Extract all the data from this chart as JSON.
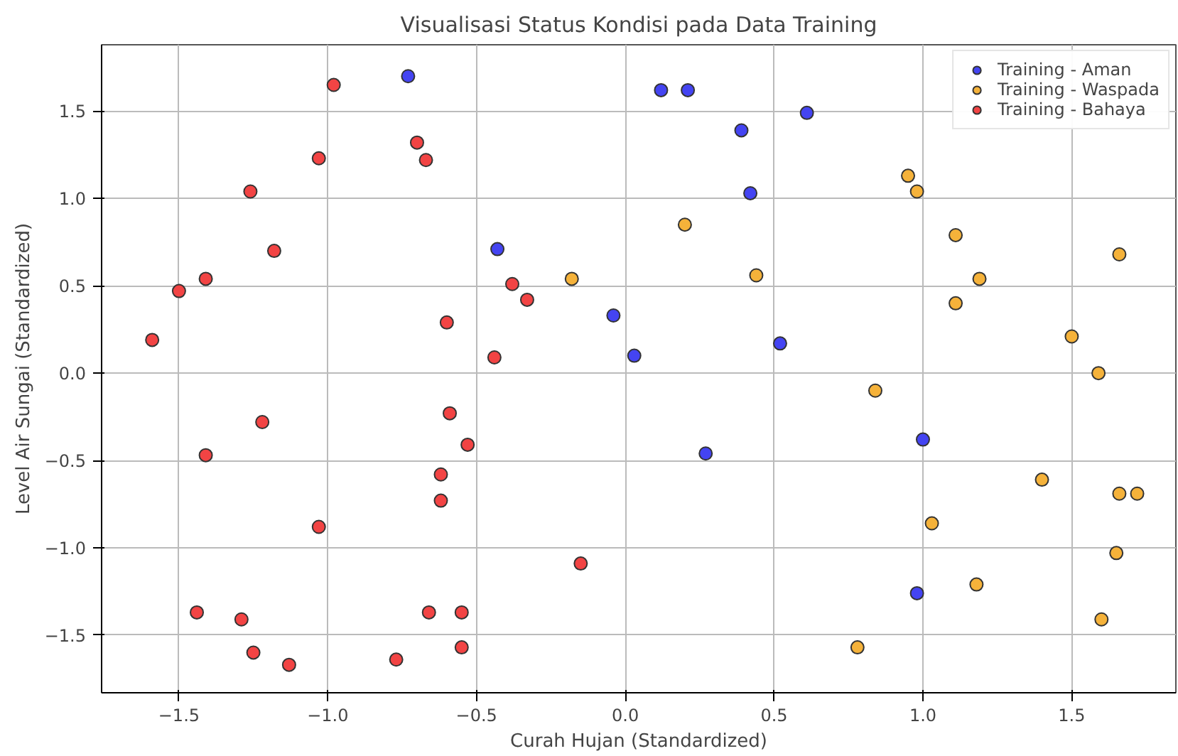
{
  "chart_data": {
    "type": "scatter",
    "title": "Visualisasi Status Kondisi pada Data Training",
    "xlabel": "Curah Hujan (Standardized)",
    "ylabel": "Level Air Sungai (Standardized)",
    "xlim": [
      -1.76,
      1.85
    ],
    "ylim": [
      -1.83,
      1.88
    ],
    "xticks": [
      {
        "value": -1.5,
        "label": "−1.5"
      },
      {
        "value": -1.0,
        "label": "−1.0"
      },
      {
        "value": -0.5,
        "label": "−0.5"
      },
      {
        "value": 0.0,
        "label": "0.0"
      },
      {
        "value": 0.5,
        "label": "0.5"
      },
      {
        "value": 1.0,
        "label": "1.0"
      },
      {
        "value": 1.5,
        "label": "1.5"
      }
    ],
    "yticks": [
      {
        "value": -1.5,
        "label": "−1.5"
      },
      {
        "value": -1.0,
        "label": "−1.0"
      },
      {
        "value": -0.5,
        "label": "−0.5"
      },
      {
        "value": 0.0,
        "label": "0.0"
      },
      {
        "value": 0.5,
        "label": "0.5"
      },
      {
        "value": 1.0,
        "label": "1.0"
      },
      {
        "value": 1.5,
        "label": "1.5"
      }
    ],
    "grid": true,
    "legend": "top right",
    "marker": "circle",
    "series": [
      {
        "name": "Training - Aman",
        "color": "#4444f2",
        "x": [
          -0.73,
          0.12,
          0.21,
          0.39,
          0.61,
          0.42,
          -0.43,
          -0.04,
          0.03,
          0.52,
          0.27,
          1.0,
          0.98
        ],
        "values": [
          1.7,
          1.62,
          1.62,
          1.39,
          1.49,
          1.03,
          0.71,
          0.33,
          0.1,
          0.17,
          -0.46,
          -0.38,
          -1.26
        ]
      },
      {
        "name": "Training - Waspada",
        "color": "#f5b23a",
        "x": [
          0.95,
          0.98,
          0.2,
          1.11,
          1.66,
          0.44,
          1.19,
          1.11,
          -0.18,
          1.5,
          1.59,
          0.84,
          1.4,
          1.66,
          1.72,
          1.03,
          1.65,
          1.18,
          1.6,
          0.78
        ],
        "values": [
          1.13,
          1.04,
          0.85,
          0.79,
          0.68,
          0.56,
          0.54,
          0.4,
          0.54,
          0.21,
          0.0,
          -0.1,
          -0.61,
          -0.69,
          -0.69,
          -0.86,
          -1.03,
          -1.21,
          -1.41,
          -1.57
        ]
      },
      {
        "name": "Training - Bahaya",
        "color": "#f24444",
        "x": [
          -0.98,
          -0.7,
          -0.67,
          -1.03,
          -1.26,
          -1.18,
          -1.5,
          -1.41,
          -1.59,
          -0.38,
          -0.33,
          -0.6,
          -0.44,
          -1.22,
          -1.41,
          -0.59,
          -0.53,
          -0.62,
          -0.62,
          -1.03,
          -0.15,
          -1.44,
          -1.29,
          -0.66,
          -0.55,
          -1.25,
          -1.13,
          -0.77,
          -0.55
        ],
        "values": [
          1.65,
          1.32,
          1.22,
          1.23,
          1.04,
          0.7,
          0.47,
          0.54,
          0.19,
          0.51,
          0.42,
          0.29,
          0.09,
          -0.28,
          -0.47,
          -0.23,
          -0.41,
          -0.58,
          -0.73,
          -0.88,
          -1.09,
          -1.37,
          -1.41,
          -1.37,
          -1.37,
          -1.6,
          -1.67,
          -1.64,
          -1.57
        ]
      }
    ]
  }
}
